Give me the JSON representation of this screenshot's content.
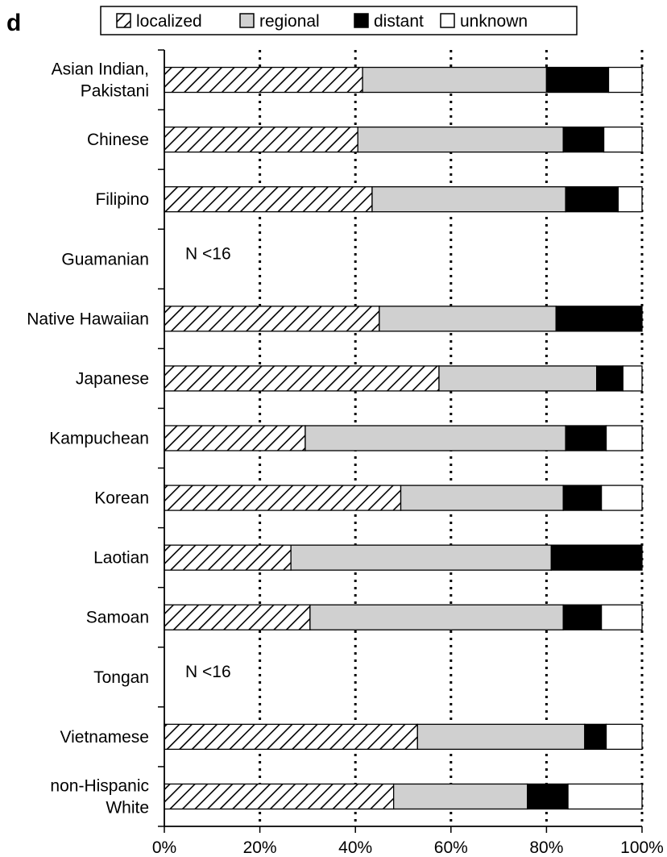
{
  "panel_label": "d",
  "chart_data": {
    "type": "bar",
    "stacked": true,
    "orientation": "horizontal",
    "categories": [
      [
        "Asian Indian,",
        "Pakistani"
      ],
      [
        "Chinese"
      ],
      [
        "Filipino"
      ],
      [
        "Guamanian"
      ],
      [
        "Native Hawaiian"
      ],
      [
        "Japanese"
      ],
      [
        "Kampuchean"
      ],
      [
        "Korean"
      ],
      [
        "Laotian"
      ],
      [
        "Samoan"
      ],
      [
        "Tongan"
      ],
      [
        "Vietnamese"
      ],
      [
        "non-Hispanic",
        "White"
      ]
    ],
    "series": [
      {
        "name": "localized",
        "pattern": "hatched",
        "color": "#000000",
        "values": [
          41.5,
          40.5,
          43.5,
          null,
          45,
          57.5,
          29.5,
          49.5,
          26.5,
          30.5,
          null,
          53,
          48
        ]
      },
      {
        "name": "regional",
        "color": "#d0d0d0",
        "values": [
          38.5,
          43,
          40.5,
          null,
          37,
          33,
          54.5,
          34,
          54.5,
          53,
          null,
          35,
          28
        ]
      },
      {
        "name": "distant",
        "color": "#000000",
        "values": [
          13,
          8.5,
          11,
          null,
          18,
          5.5,
          8.5,
          8,
          19,
          8,
          null,
          4.5,
          8.5
        ]
      },
      {
        "name": "unknown",
        "color": "#ffffff",
        "values": [
          7,
          8,
          5,
          null,
          0,
          4,
          7.5,
          8.5,
          0,
          8.5,
          null,
          7.5,
          15.5
        ]
      }
    ],
    "annotations": [
      {
        "category_index": 3,
        "text": "N <16"
      },
      {
        "category_index": 10,
        "text": "N <16"
      }
    ],
    "xticks": [
      "0%",
      "20%",
      "40%",
      "60%",
      "80%",
      "100%"
    ],
    "xlim": [
      0,
      100
    ],
    "gridlines": "dotted vertical",
    "legend_position": "top",
    "title": "",
    "xlabel": "",
    "ylabel": ""
  }
}
